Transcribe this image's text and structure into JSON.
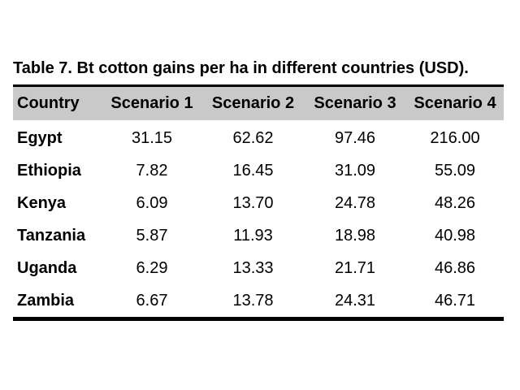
{
  "caption": "Table 7. Bt cotton gains per ha in different countries (USD).",
  "table": {
    "headers": [
      "Country",
      "Scenario 1",
      "Scenario 2",
      "Scenario 3",
      "Scenario 4"
    ],
    "rows": [
      [
        "Egypt",
        "31.15",
        "62.62",
        "97.46",
        "216.00"
      ],
      [
        "Ethiopia",
        "7.82",
        "16.45",
        "31.09",
        "55.09"
      ],
      [
        "Kenya",
        "6.09",
        "13.70",
        "24.78",
        "48.26"
      ],
      [
        "Tanzania",
        "5.87",
        "11.93",
        "18.98",
        "40.98"
      ],
      [
        "Uganda",
        "6.29",
        "13.33",
        "21.71",
        "46.86"
      ],
      [
        "Zambia",
        "6.67",
        "13.78",
        "24.31",
        "46.71"
      ]
    ]
  },
  "colors": {
    "header_background": "#c9c9c9",
    "rule": "#000000"
  }
}
